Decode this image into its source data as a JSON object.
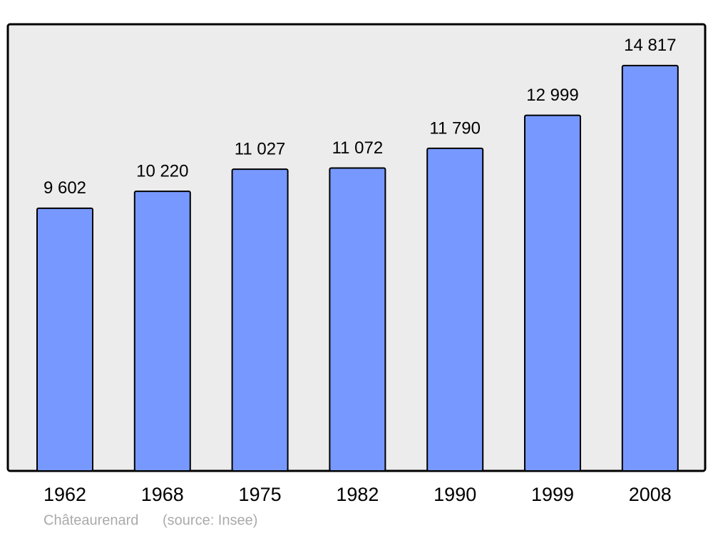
{
  "chart_data": {
    "type": "bar",
    "categories": [
      "1962",
      "1968",
      "1975",
      "1982",
      "1990",
      "1999",
      "2008"
    ],
    "values": [
      9602,
      10220,
      11027,
      11072,
      11790,
      12999,
      14817
    ],
    "value_labels": [
      "9 602",
      "10 220",
      "11 027",
      "11 072",
      "11 790",
      "12 999",
      "14 817"
    ],
    "color": "#7799ff",
    "ylim": [
      0,
      16300
    ],
    "caption": "Châteaurenard",
    "source": "(source: Insee)"
  }
}
